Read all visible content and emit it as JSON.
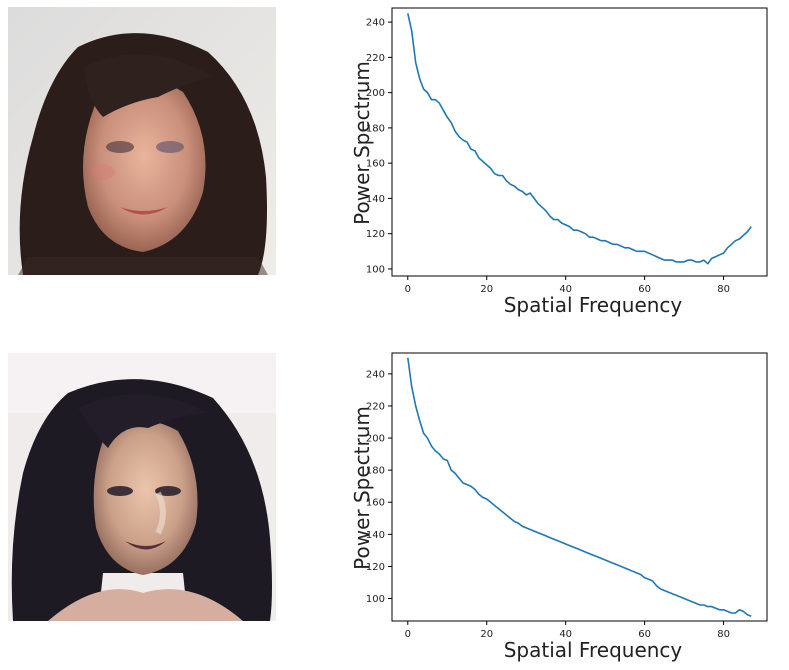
{
  "chart_data": [
    {
      "type": "line",
      "xlabel": "Spatial Frequency",
      "ylabel": "Power Spectrum",
      "xlim": [
        -4,
        91
      ],
      "ylim": [
        96,
        248
      ],
      "xticks": [
        0,
        20,
        40,
        60,
        80
      ],
      "yticks": [
        100,
        120,
        140,
        160,
        180,
        200,
        220,
        240
      ],
      "grid": false,
      "series_color": "#1f77b4",
      "x": [
        0,
        1,
        2,
        3,
        4,
        5,
        6,
        7,
        8,
        9,
        10,
        11,
        12,
        13,
        14,
        15,
        16,
        17,
        18,
        19,
        20,
        21,
        22,
        23,
        24,
        25,
        26,
        27,
        28,
        29,
        30,
        31,
        32,
        33,
        34,
        35,
        36,
        37,
        38,
        39,
        40,
        41,
        42,
        43,
        44,
        45,
        46,
        47,
        48,
        49,
        50,
        51,
        52,
        53,
        54,
        55,
        56,
        57,
        58,
        59,
        60,
        61,
        62,
        63,
        64,
        65,
        66,
        67,
        68,
        69,
        70,
        71,
        72,
        73,
        74,
        75,
        76,
        77,
        78,
        79,
        80,
        81,
        82,
        83,
        84,
        85,
        86,
        87
      ],
      "y": [
        245,
        235,
        217,
        208,
        202,
        200,
        196,
        196,
        194,
        190,
        186,
        183,
        178,
        175,
        173,
        172,
        168,
        167,
        163,
        161,
        159,
        157,
        154,
        153,
        153,
        150,
        148,
        147,
        145,
        144,
        142,
        143,
        140,
        137,
        135,
        133,
        130,
        128,
        128,
        126,
        125,
        124,
        122,
        122,
        121,
        120,
        118,
        118,
        117,
        116,
        116,
        115,
        114,
        114,
        113,
        112,
        112,
        111,
        110,
        110,
        110,
        109,
        108,
        107,
        106,
        105,
        105,
        105,
        104,
        104,
        104,
        105,
        105,
        104,
        104,
        105,
        103,
        106,
        107,
        108,
        109,
        112,
        114,
        116,
        117,
        119,
        121,
        124
      ]
    },
    {
      "type": "line",
      "xlabel": "Spatial Frequency",
      "ylabel": "Power Spectrum",
      "xlim": [
        -4,
        91
      ],
      "ylim": [
        86,
        253
      ],
      "xticks": [
        0,
        20,
        40,
        60,
        80
      ],
      "yticks": [
        100,
        120,
        140,
        160,
        180,
        200,
        220,
        240
      ],
      "grid": false,
      "series_color": "#1f77b4",
      "x": [
        0,
        1,
        2,
        3,
        4,
        5,
        6,
        7,
        8,
        9,
        10,
        11,
        12,
        13,
        14,
        15,
        16,
        17,
        18,
        19,
        20,
        21,
        22,
        23,
        24,
        25,
        26,
        27,
        28,
        29,
        30,
        31,
        32,
        33,
        34,
        35,
        36,
        37,
        38,
        39,
        40,
        41,
        42,
        43,
        44,
        45,
        46,
        47,
        48,
        49,
        50,
        51,
        52,
        53,
        54,
        55,
        56,
        57,
        58,
        59,
        60,
        61,
        62,
        63,
        64,
        65,
        66,
        67,
        68,
        69,
        70,
        71,
        72,
        73,
        74,
        75,
        76,
        77,
        78,
        79,
        80,
        81,
        82,
        83,
        84,
        85,
        86,
        87
      ],
      "y": [
        250,
        232,
        220,
        211,
        203,
        200,
        195,
        192,
        190,
        187,
        186,
        180,
        178,
        175,
        172,
        171,
        170,
        168,
        165,
        163,
        162,
        160,
        158,
        156,
        154,
        152,
        150,
        148,
        147,
        145,
        144,
        143,
        142,
        141,
        140,
        139,
        138,
        137,
        136,
        135,
        134,
        133,
        132,
        131,
        130,
        129,
        128,
        127,
        126,
        125,
        124,
        123,
        122,
        121,
        120,
        119,
        118,
        117,
        116,
        115,
        113,
        112,
        111,
        108,
        106,
        105,
        104,
        103,
        102,
        101,
        100,
        99,
        98,
        97,
        96,
        96,
        95,
        95,
        94,
        93,
        93,
        92,
        91,
        91,
        93,
        92,
        90,
        89
      ]
    }
  ]
}
